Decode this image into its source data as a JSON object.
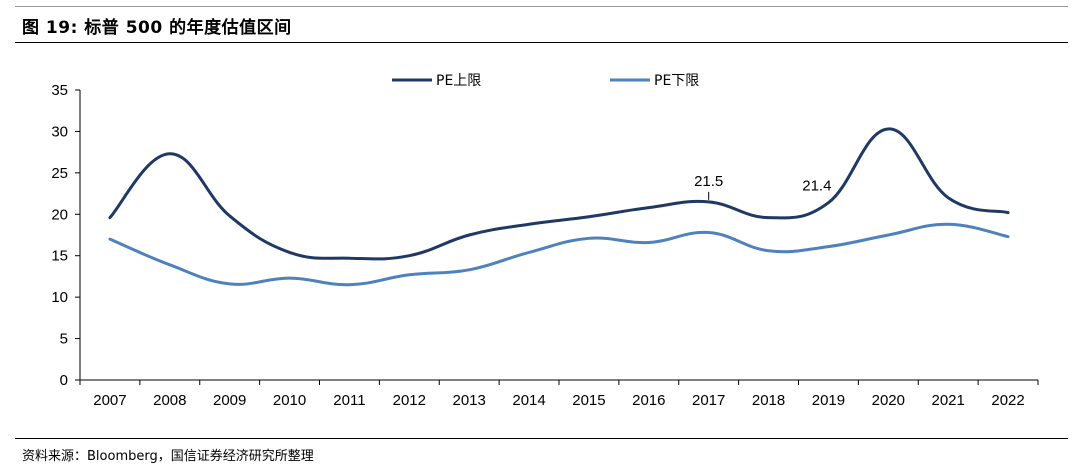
{
  "figure": {
    "title": "图 19:  标普 500 的年度估值区间",
    "source": "资料来源：Bloomberg，国信证券经济研究所整理"
  },
  "chart_data": {
    "type": "line",
    "title": "",
    "xlabel": "",
    "ylabel": "",
    "categories": [
      "2007",
      "2008",
      "2009",
      "2010",
      "2011",
      "2012",
      "2013",
      "2014",
      "2015",
      "2016",
      "2017",
      "2018",
      "2019",
      "2020",
      "2021",
      "2022"
    ],
    "ylim": [
      0,
      35
    ],
    "yticks": [
      0,
      5,
      10,
      15,
      20,
      25,
      30,
      35
    ],
    "grid": false,
    "legend_position": "top",
    "series": [
      {
        "name": "PE上限",
        "color": "#1f3864",
        "values": [
          19.6,
          27.3,
          19.8,
          15.4,
          14.7,
          15.0,
          17.5,
          18.8,
          19.7,
          20.8,
          21.5,
          19.6,
          21.4,
          30.3,
          22.0,
          20.2
        ]
      },
      {
        "name": "PE下限",
        "color": "#4f81bd",
        "values": [
          17.0,
          13.9,
          11.6,
          12.3,
          11.5,
          12.7,
          13.3,
          15.4,
          17.1,
          16.6,
          17.8,
          15.6,
          16.1,
          17.5,
          18.8,
          17.3
        ]
      }
    ],
    "annotations": [
      {
        "text": "21.5",
        "category": "2017",
        "series": 0
      },
      {
        "text": "21.4",
        "category": "2019",
        "series": 0
      }
    ]
  }
}
